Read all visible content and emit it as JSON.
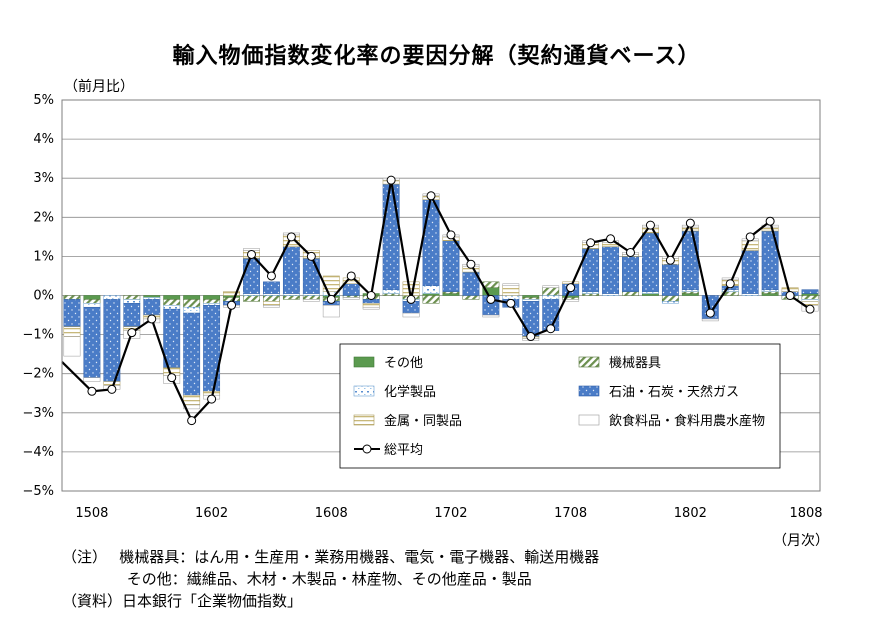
{
  "title": "輸入物価指数変化率の要因分解（契約通貨ベース）",
  "y_unit_label": "（前月比）",
  "x_unit_label": "（月次）",
  "notes": [
    "（注）　 機械器具：はん用・生産用・業務用機器、電気・電子機器、輸送用機器",
    "　　　　 その他：繊維品、木材・木製品・林産物、その他産品・製品",
    "（資料）日本銀行「企業物価指数」"
  ],
  "colors": {
    "other": "#5b9a4f",
    "machinery": "#6b8f4e",
    "chemicals": "#9bc4e8",
    "oil": "#4a7cc7",
    "metals": "#c8b87a",
    "food": "#ffffff",
    "average": "#000000"
  },
  "chart_data": {
    "type": "bar",
    "stacked": true,
    "title": "輸入物価指数変化率の要因分解（契約通貨ベース）",
    "ylabel": "（前月比）",
    "xlabel": "（月次）",
    "ylim": [
      -5,
      5
    ],
    "yticks": [
      -5,
      -4,
      -3,
      -2,
      -1,
      0,
      1,
      2,
      3,
      4,
      5
    ],
    "ytick_labels": [
      "−5%",
      "−4%",
      "−3%",
      "−2%",
      "−1%",
      "0%",
      "1%",
      "2%",
      "3%",
      "4%",
      "5%"
    ],
    "grid": "horizontal",
    "legend_position": "lower-right",
    "x_tick_labels": [
      "1508",
      "1602",
      "1608",
      "1702",
      "1708",
      "1802",
      "1808"
    ],
    "x_tick_every": 6,
    "categories": [
      "1507",
      "1508",
      "1509",
      "1510",
      "1511",
      "1512",
      "1601",
      "1602",
      "1603",
      "1604",
      "1605",
      "1606",
      "1607",
      "1608",
      "1609",
      "1610",
      "1611",
      "1612",
      "1701",
      "1702",
      "1703",
      "1704",
      "1705",
      "1706",
      "1707",
      "1708",
      "1709",
      "1710",
      "1711",
      "1712",
      "1801",
      "1802",
      "1803",
      "1804",
      "1805",
      "1806",
      "1807",
      "1808"
    ],
    "series": [
      {
        "name": "その他",
        "key": "other",
        "values": [
          0,
          -0.1,
          0,
          0,
          -0.05,
          -0.1,
          -0.1,
          -0.1,
          -0.05,
          0,
          0,
          0,
          0,
          -0.05,
          0,
          0.05,
          0,
          0,
          0.05,
          0.05,
          0,
          0.2,
          0,
          -0.05,
          0,
          -0.05,
          0,
          0,
          0,
          0.05,
          0,
          0.05,
          0,
          0,
          0,
          0.05,
          0,
          0.05
        ]
      },
      {
        "name": "機械器具",
        "key": "machinery",
        "values": [
          -0.1,
          -0.1,
          0,
          -0.1,
          0,
          -0.15,
          -0.2,
          -0.1,
          -0.1,
          -0.15,
          -0.15,
          -0.1,
          -0.1,
          -0.1,
          -0.05,
          -0.1,
          0.05,
          -0.1,
          -0.2,
          0.05,
          -0.1,
          0.15,
          0,
          -0.05,
          0.2,
          -0.05,
          0.05,
          0,
          0.1,
          0,
          -0.15,
          0.05,
          0,
          0.1,
          0,
          0.05,
          -0.1,
          -0.1
        ]
      },
      {
        "name": "化学製品",
        "key": "chemicals",
        "values": [
          0,
          -0.1,
          -0.1,
          -0.1,
          -0.05,
          -0.1,
          -0.15,
          -0.05,
          0,
          0.05,
          0.05,
          0.05,
          0.05,
          0.1,
          0,
          0,
          0.1,
          -0.05,
          0.2,
          0,
          0,
          0,
          -0.1,
          -0.05,
          -0.1,
          0,
          0.05,
          0.05,
          0,
          0.05,
          -0.05,
          0.05,
          0,
          0.05,
          0.05,
          0.05,
          0,
          -0.05
        ]
      },
      {
        "name": "石油・石炭・天然ガス",
        "key": "oil",
        "values": [
          -0.7,
          -1.8,
          -2.1,
          -0.6,
          -0.4,
          -1.5,
          -2.1,
          -2.2,
          -0.1,
          0.9,
          0.3,
          1.2,
          0.9,
          -0.1,
          0.3,
          -0.1,
          2.7,
          -0.3,
          2.2,
          1.3,
          0.6,
          -0.5,
          -0.2,
          -0.9,
          -0.8,
          0.3,
          1.1,
          1.2,
          0.9,
          1.5,
          0.8,
          1.5,
          -0.6,
          0.1,
          1.1,
          1.5,
          0.1,
          0.1
        ]
      },
      {
        "name": "金属・同製品",
        "key": "metals",
        "values": [
          -0.25,
          0,
          -0.1,
          -0.1,
          -0.1,
          -0.2,
          -0.25,
          -0.1,
          0.1,
          0.2,
          -0.1,
          0.3,
          0.2,
          0.4,
          0.15,
          -0.1,
          0.1,
          0.35,
          0.1,
          0.1,
          0.15,
          0,
          0.25,
          -0.05,
          0,
          0.05,
          0.15,
          0.1,
          0.05,
          0.15,
          0.15,
          0.1,
          0,
          0.15,
          0.25,
          0.1,
          0.1,
          -0.1
        ]
      },
      {
        "name": "飲食料品・食料用農水産物",
        "key": "food",
        "values": [
          -0.5,
          -0.1,
          -0.1,
          -0.2,
          -0.1,
          -0.2,
          -0.1,
          -0.1,
          -0.05,
          0.05,
          -0.05,
          0.05,
          -0.05,
          -0.3,
          -0.05,
          -0.05,
          0.05,
          -0.1,
          0.05,
          0.05,
          0.05,
          -0.05,
          0.05,
          -0.05,
          0.05,
          -0.05,
          0.05,
          0.05,
          0.05,
          0.05,
          0.05,
          0.05,
          -0.05,
          0.05,
          0.05,
          0.05,
          0,
          -0.15
        ]
      },
      {
        "name": "総平均",
        "key": "average",
        "kind": "line",
        "values": [
          -1.7,
          -2.45,
          -2.4,
          -0.95,
          -0.6,
          -2.1,
          -3.2,
          -2.65,
          -0.25,
          1.05,
          0.5,
          1.5,
          1.0,
          -0.1,
          0.5,
          0.0,
          2.95,
          -0.1,
          2.55,
          1.55,
          0.8,
          -0.1,
          -0.2,
          -1.05,
          -0.85,
          0.2,
          1.35,
          1.45,
          1.1,
          1.8,
          0.9,
          1.85,
          -0.45,
          0.3,
          1.5,
          1.9,
          0.0,
          -0.35
        ]
      }
    ]
  }
}
